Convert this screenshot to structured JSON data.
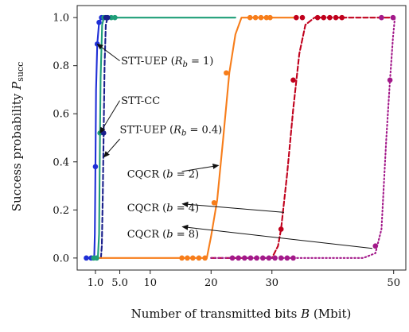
{
  "chart_data": {
    "type": "line",
    "xlabel": "Number of transmitted bits B (Mbit)",
    "ylabel": "Success probability P_succ",
    "xlim": [
      -2,
      52
    ],
    "ylim": [
      -0.05,
      1.05
    ],
    "x_ticks": [
      {
        "value": 1.0,
        "label": "1.0"
      },
      {
        "value": 5.0,
        "label": "5.0"
      },
      {
        "value": 10,
        "label": "10"
      },
      {
        "value": 20,
        "label": "20"
      },
      {
        "value": 30,
        "label": "30"
      },
      {
        "value": 50,
        "label": "50"
      }
    ],
    "y_ticks": [
      {
        "value": 0.0,
        "label": "0.0"
      },
      {
        "value": 0.2,
        "label": "0.2"
      },
      {
        "value": 0.4,
        "label": "0.4"
      },
      {
        "value": 0.6,
        "label": "0.6"
      },
      {
        "value": 0.8,
        "label": "0.8"
      },
      {
        "value": 1.0,
        "label": "1.0"
      }
    ],
    "grid": false,
    "legend": "none",
    "series": [
      {
        "color": "#1f2fd6",
        "dash": "solid",
        "x": [
          -0.5,
          0.3,
          0.8,
          0.9,
          1.0,
          1.1,
          1.3,
          1.6,
          2.0,
          2.5,
          3.0
        ],
        "y": [
          0.0,
          0.0,
          0.0,
          0.1,
          0.38,
          0.7,
          0.89,
          0.98,
          1.0,
          1.0,
          1.0
        ],
        "markers_x": [
          -0.5,
          0.3,
          1.0,
          1.3,
          1.6,
          2.0
        ],
        "markers_y": [
          0.0,
          0.0,
          0.38,
          0.89,
          0.98,
          1.0
        ]
      },
      {
        "color": "#1e9e78",
        "dash": "solid",
        "x": [
          0.7,
          1.4,
          1.6,
          1.75,
          1.85,
          2.1,
          2.4,
          3.0,
          5.0,
          10,
          20,
          24
        ],
        "y": [
          0.0,
          0.0,
          0.1,
          0.52,
          0.75,
          0.97,
          1.0,
          1.0,
          1.0,
          1.0,
          1.0,
          1.0
        ],
        "markers_x": [
          0.7,
          1.2,
          1.75,
          2.4,
          3.6,
          4.2
        ],
        "markers_y": [
          0.0,
          0.0,
          0.52,
          1.0,
          1.0,
          1.0
        ]
      },
      {
        "color": "#1a1f8c",
        "dash": "dashed",
        "x": [
          1.9,
          2.05,
          2.2,
          2.35,
          2.5,
          2.7,
          3.0,
          4.0
        ],
        "y": [
          0.0,
          0.05,
          0.25,
          0.52,
          0.8,
          0.97,
          1.0,
          1.0
        ],
        "markers_x": [
          2.35,
          2.7,
          3.0
        ],
        "markers_y": [
          0.52,
          1.0,
          1.0
        ]
      },
      {
        "color": "#f77d1a",
        "dash": "solid",
        "x": [
          1.6,
          5,
          10,
          15,
          18,
          19.3,
          20,
          21,
          22,
          23,
          24,
          25,
          26,
          27,
          28,
          30,
          32,
          34
        ],
        "y": [
          0.0,
          0.0,
          0.0,
          0.0,
          0.0,
          0.0,
          0.09,
          0.24,
          0.5,
          0.77,
          0.93,
          1.0,
          1.0,
          1.0,
          1.0,
          1.0,
          1.0,
          1.0
        ],
        "markers_x": [
          15.2,
          16.1,
          17.0,
          18.0,
          19.0,
          20.5,
          22.5,
          26.4,
          27.3,
          28.2,
          29.1,
          29.7
        ],
        "markers_y": [
          0.0,
          0.0,
          0.0,
          0.0,
          0.0,
          0.23,
          0.77,
          1.0,
          1.0,
          1.0,
          1.0,
          1.0
        ]
      },
      {
        "color": "#c0001c",
        "dash": "dashed",
        "x": [
          20,
          25,
          30,
          31,
          31.5,
          32.5,
          33.5,
          34.5,
          35.5,
          37,
          40,
          45,
          50
        ],
        "y": [
          0.0,
          0.0,
          0.0,
          0.05,
          0.12,
          0.35,
          0.62,
          0.85,
          0.97,
          1.0,
          1.0,
          1.0,
          1.0
        ],
        "markers_x": [
          31.5,
          33.5,
          34.0,
          35.0,
          37.5,
          38.5,
          39.5,
          40.5,
          41.5
        ],
        "markers_y": [
          0.12,
          0.74,
          1.0,
          1.0,
          1.0,
          1.0,
          1.0,
          1.0,
          1.0
        ]
      },
      {
        "color": "#a3198a",
        "dash": "dotted",
        "x": [
          20,
          30,
          40,
          45,
          47,
          48,
          48.8,
          49.4,
          49.9,
          50.2
        ],
        "y": [
          0.0,
          0.0,
          0.0,
          0.0,
          0.02,
          0.12,
          0.5,
          0.74,
          0.92,
          1.0
        ],
        "markers_x": [
          23.5,
          24.5,
          25.5,
          26.5,
          27.5,
          28.5,
          29.5,
          30.5,
          31.5,
          32.5,
          33.5,
          47.0,
          49.4,
          49.9,
          48.0
        ],
        "markers_y": [
          0.0,
          0.0,
          0.0,
          0.0,
          0.0,
          0.0,
          0.0,
          0.0,
          0.0,
          0.0,
          0.0,
          0.05,
          0.74,
          1.0,
          1.0
        ]
      }
    ],
    "annotations": [
      {
        "text": "STT-UEP (R_b = 1)",
        "main": "STT-UEP (",
        "sub_sym": "R",
        "sub": "b",
        "rest": " = 1)",
        "text_x": 5.2,
        "text_y": 0.82,
        "arrow_from_x": 5.0,
        "arrow_from_y": 0.82,
        "arrow_to_x": 1.3,
        "arrow_to_y": 0.89
      },
      {
        "text": "STT-CC",
        "main": "STT-CC",
        "sub_sym": "",
        "sub": "",
        "rest": "",
        "text_x": 5.2,
        "text_y": 0.655,
        "arrow_from_x": 5.0,
        "arrow_from_y": 0.655,
        "arrow_to_x": 1.75,
        "arrow_to_y": 0.52
      },
      {
        "text": "STT-UEP (R_b = 0.4)",
        "main": "STT-UEP (",
        "sub_sym": "R",
        "sub": "b",
        "rest": " = 0.4)",
        "text_x": 5.0,
        "text_y": 0.535,
        "arrow_from_x": 5.0,
        "arrow_from_y": 0.495,
        "arrow_to_x": 2.4,
        "arrow_to_y": 0.42
      },
      {
        "text": "CQCR (b = 2)",
        "main": "CQCR (",
        "sub_sym": "b",
        "sub": "",
        "rest": " = 2)",
        "text_x": 6.2,
        "text_y": 0.35,
        "arrow_from_x": 15.2,
        "arrow_from_y": 0.36,
        "arrow_to_x": 21.2,
        "arrow_to_y": 0.385
      },
      {
        "text": "CQCR (b = 4)",
        "main": "CQCR (",
        "sub_sym": "b",
        "sub": "",
        "rest": " = 4)",
        "text_x": 6.2,
        "text_y": 0.21,
        "arrow_from_x": 32.0,
        "arrow_from_y": 0.19,
        "arrow_to_x": 15.3,
        "arrow_to_y": 0.225
      },
      {
        "text": "CQCR (b = 8)",
        "main": "CQCR (",
        "sub_sym": "b",
        "sub": "",
        "rest": " = 8)",
        "text_x": 6.2,
        "text_y": 0.1,
        "arrow_from_x": 46.5,
        "arrow_from_y": 0.04,
        "arrow_to_x": 15.3,
        "arrow_to_y": 0.13
      }
    ]
  }
}
